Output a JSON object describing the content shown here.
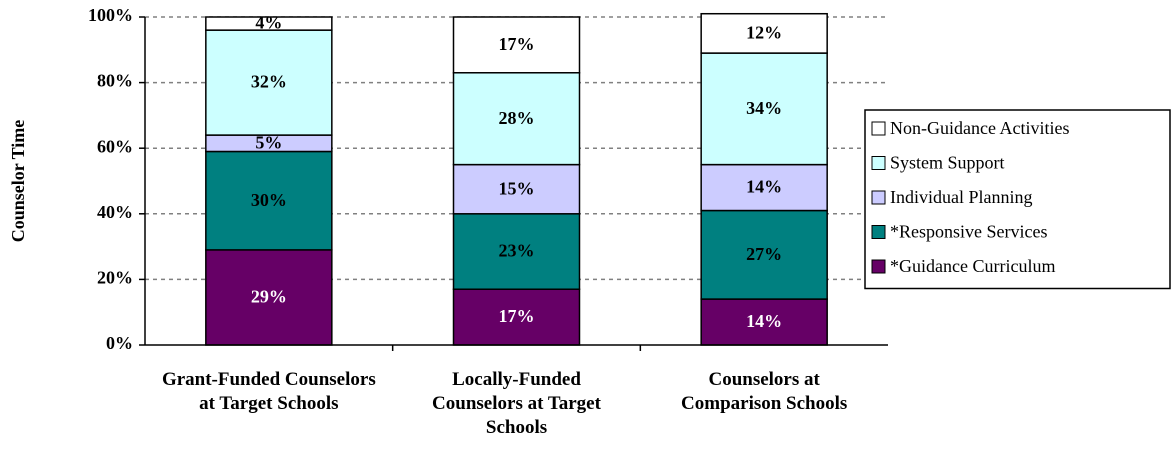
{
  "chart_data": {
    "type": "stacked_bar",
    "y_label": "Counselor Time",
    "categories": [
      "Grant-Funded Counselors at Target Schools",
      "Locally-Funded Counselors at Target Schools",
      "Counselors at Comparison Schools"
    ],
    "series": [
      {
        "name": "*Guidance Curriculum",
        "color": "#660066",
        "values": [
          29,
          17,
          14
        ],
        "value_labels": [
          "29%",
          "17%",
          "14%"
        ]
      },
      {
        "name": "*Responsive Services",
        "color": "#008080",
        "values": [
          30,
          23,
          27
        ],
        "value_labels": [
          "30%",
          "23%",
          "27%"
        ]
      },
      {
        "name": "Individual Planning",
        "color": "#ccccff",
        "values": [
          5,
          15,
          14
        ],
        "value_labels": [
          "5%",
          "15%",
          "14%"
        ]
      },
      {
        "name": "System Support",
        "color": "#ccffff",
        "values": [
          32,
          28,
          34
        ],
        "value_labels": [
          "32%",
          "28%",
          "34%"
        ]
      },
      {
        "name": "Non-Guidance Activities",
        "color": "#ffffff",
        "values": [
          4,
          17,
          12
        ],
        "value_labels": [
          "4%",
          "17%",
          "12%"
        ]
      }
    ],
    "ylim": [
      0,
      100
    ],
    "yticks": [
      {
        "value": 0,
        "label": "0%"
      },
      {
        "value": 20,
        "label": "20%"
      },
      {
        "value": 40,
        "label": "40%"
      },
      {
        "value": 60,
        "label": "60%"
      },
      {
        "value": 80,
        "label": "80%"
      },
      {
        "value": 100,
        "label": "100%"
      }
    ],
    "grid": true,
    "legend": "right"
  }
}
